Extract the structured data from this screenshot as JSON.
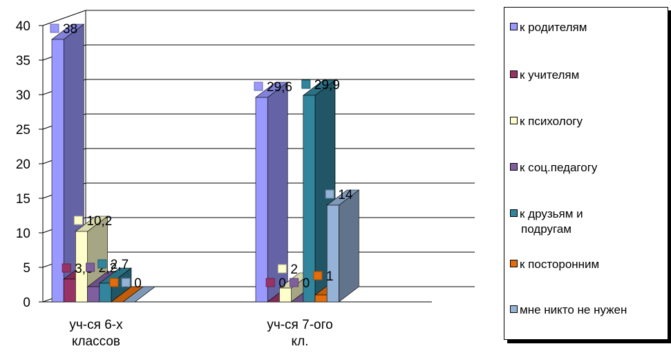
{
  "chart_data": {
    "type": "bar",
    "categories": [
      "уч-ся 6-х классов",
      "уч-ся 7-ого кл."
    ],
    "category_lines": [
      [
        "уч-ся 6-х",
        "классов"
      ],
      [
        "уч-ся 7-ого",
        "кл."
      ]
    ],
    "ylim": [
      0,
      40
    ],
    "yticks": [
      0,
      5,
      10,
      15,
      20,
      25,
      30,
      35,
      40
    ],
    "grid": true,
    "legend_position": "right",
    "series": [
      {
        "name": "к родителям",
        "color": "#9999ff",
        "values": [
          38,
          29.6
        ],
        "labels": [
          "38",
          "29,6"
        ]
      },
      {
        "name": "к учителям",
        "color": "#993366",
        "values": [
          3.3,
          0
        ],
        "labels": [
          "3,3",
          "0"
        ]
      },
      {
        "name": "к психологу",
        "color": "#ffffcc",
        "values": [
          10.2,
          2
        ],
        "labels": [
          "10,2",
          "2"
        ]
      },
      {
        "name": "к соц.педагогу",
        "color": "#7f5f9f",
        "values": [
          2.2,
          0
        ],
        "labels": [
          "2,2",
          "0"
        ]
      },
      {
        "name": "к друзьям и подругам",
        "color": "#31859c",
        "values": [
          2.7,
          29.9
        ],
        "labels": [
          "2,7",
          "29,9"
        ]
      },
      {
        "name": "к посторонним",
        "color": "#e46c0a",
        "values": [
          0,
          1
        ],
        "labels": [
          "0",
          "1"
        ]
      },
      {
        "name": "мне никто не нужен",
        "color": "#95b3d7",
        "values": [
          0,
          14
        ],
        "labels": [
          "0",
          "14"
        ]
      }
    ],
    "legend_lines": [
      [
        "к родителям"
      ],
      [
        "к учителям"
      ],
      [
        "к психологу"
      ],
      [
        "к соц.педагогу"
      ],
      [
        "к друзьям и",
        "подругам"
      ],
      [
        "к посторонним"
      ],
      [
        "мне никто не нужен"
      ]
    ]
  }
}
